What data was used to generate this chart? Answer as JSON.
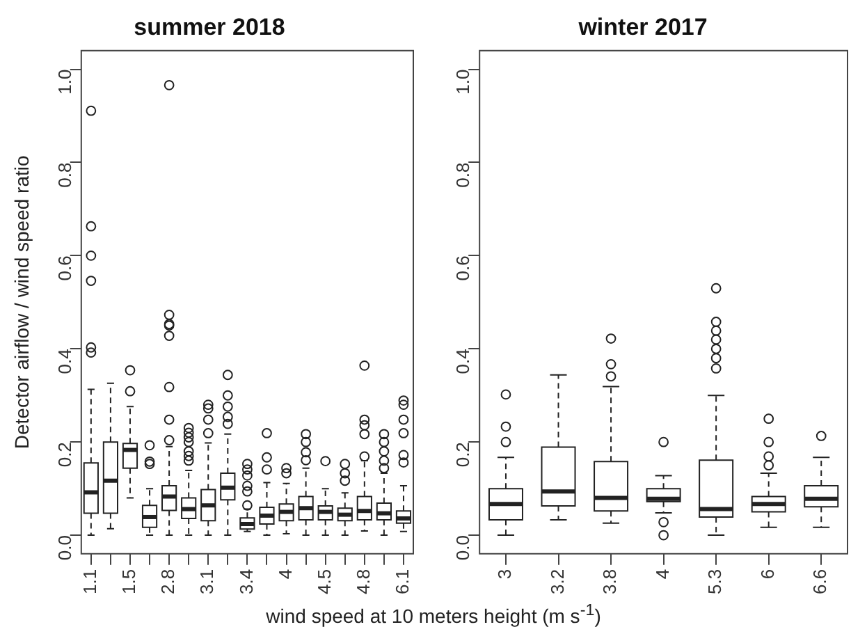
{
  "chart_data": [
    {
      "type": "box",
      "title": "summer 2018",
      "ylabel": "Detector airflow / wind speed ratio",
      "xlabel": "wind speed at 10 meters height (m s$^{-1}$)",
      "categories": [
        "1.1",
        null,
        "1.5",
        null,
        "2.8",
        null,
        "3.1",
        null,
        "3.4",
        null,
        "4",
        null,
        "4.5",
        null,
        "4.8",
        null,
        "6.1"
      ],
      "ylim": [
        -0.04,
        1.04
      ],
      "yticks": [
        {
          "value": 0,
          "label": "0.0"
        },
        {
          "value": 0.2,
          "label": "0.2"
        },
        {
          "value": 0.4,
          "label": "0.4"
        },
        {
          "value": 0.6,
          "label": "0.6"
        },
        {
          "value": 0.8,
          "label": "0.8"
        },
        {
          "value": 1,
          "label": "1.0"
        }
      ],
      "boxes": [
        {
          "low": 0,
          "q1": 0.047,
          "median": 0.092,
          "q3": 0.155,
          "high": 0.313,
          "outliers": [
            0.392,
            0.403,
            0.546,
            0.6,
            0.663,
            0.911
          ]
        },
        {
          "low": 0.014,
          "q1": 0.047,
          "median": 0.117,
          "q3": 0.2,
          "high": 0.326
        },
        {
          "low": 0.08,
          "q1": 0.144,
          "median": 0.183,
          "q3": 0.197,
          "high": 0.276,
          "outliers": [
            0.309,
            0.354
          ]
        },
        {
          "low": 0,
          "q1": 0.017,
          "median": 0.039,
          "q3": 0.064,
          "high": 0.1,
          "outliers": [
            0.153,
            0.158,
            0.193
          ]
        },
        {
          "low": 0,
          "q1": 0.053,
          "median": 0.083,
          "q3": 0.106,
          "high": 0.19,
          "outliers": [
            0.204,
            0.248,
            0.318,
            0.428,
            0.45,
            0.453,
            0.473,
            0.966
          ]
        },
        {
          "low": 0,
          "q1": 0.036,
          "median": 0.056,
          "q3": 0.08,
          "high": 0.139,
          "outliers": [
            0.16,
            0.17,
            0.18,
            0.2,
            0.21,
            0.22,
            0.23
          ]
        },
        {
          "low": 0,
          "q1": 0.031,
          "median": 0.064,
          "q3": 0.098,
          "high": 0.198,
          "outliers": [
            0.219,
            0.248,
            0.272,
            0.28
          ]
        },
        {
          "low": 0,
          "q1": 0.076,
          "median": 0.102,
          "q3": 0.133,
          "high": 0.217,
          "outliers": [
            0.239,
            0.254,
            0.276,
            0.3,
            0.344
          ]
        },
        {
          "low": 0.008,
          "q1": 0.013,
          "median": 0.024,
          "q3": 0.037,
          "high": 0.056,
          "outliers": [
            0.064,
            0.094,
            0.106,
            0.128,
            0.141,
            0.153
          ]
        },
        {
          "low": 0,
          "q1": 0.024,
          "median": 0.042,
          "q3": 0.06,
          "high": 0.113,
          "outliers": [
            0.141,
            0.167,
            0.219
          ]
        },
        {
          "low": 0.003,
          "q1": 0.031,
          "median": 0.05,
          "q3": 0.067,
          "high": 0.111,
          "outliers": [
            0.133,
            0.144
          ]
        },
        {
          "low": 0,
          "q1": 0.033,
          "median": 0.058,
          "q3": 0.083,
          "high": 0.144,
          "outliers": [
            0.161,
            0.178,
            0.2,
            0.217
          ]
        },
        {
          "low": 0,
          "q1": 0.033,
          "median": 0.05,
          "q3": 0.063,
          "high": 0.1,
          "outliers": [
            0.159
          ]
        },
        {
          "low": 0,
          "q1": 0.031,
          "median": 0.044,
          "q3": 0.058,
          "high": 0.091,
          "outliers": [
            0.117,
            0.133,
            0.153
          ]
        },
        {
          "low": 0.009,
          "q1": 0.033,
          "median": 0.052,
          "q3": 0.083,
          "high": 0.16,
          "outliers": [
            0.169,
            0.217,
            0.236,
            0.248,
            0.364
          ]
        },
        {
          "low": 0,
          "q1": 0.033,
          "median": 0.047,
          "q3": 0.069,
          "high": 0.133,
          "outliers": [
            0.144,
            0.16,
            0.18,
            0.2,
            0.217
          ]
        },
        {
          "low": 0.008,
          "q1": 0.026,
          "median": 0.036,
          "q3": 0.052,
          "high": 0.106,
          "outliers": [
            0.156,
            0.172,
            0.219,
            0.248,
            0.28,
            0.289
          ]
        }
      ]
    },
    {
      "type": "box",
      "title": "winter 2017",
      "categories": [
        "3",
        "3.2",
        "3.8",
        "4",
        "5.3",
        "6",
        "6.6"
      ],
      "ylim": [
        -0.04,
        1.04
      ],
      "yticks": [
        {
          "value": 0,
          "label": "0.0"
        },
        {
          "value": 0.2,
          "label": "0.2"
        },
        {
          "value": 0.4,
          "label": "0.4"
        },
        {
          "value": 0.6,
          "label": "0.6"
        },
        {
          "value": 0.8,
          "label": "0.8"
        },
        {
          "value": 1,
          "label": "1.0"
        }
      ],
      "boxes": [
        {
          "low": 0,
          "q1": 0.033,
          "median": 0.067,
          "q3": 0.1,
          "high": 0.167,
          "outliers": [
            0.2,
            0.233,
            0.302
          ]
        },
        {
          "low": 0.033,
          "q1": 0.063,
          "median": 0.094,
          "q3": 0.189,
          "high": 0.344
        },
        {
          "low": 0.026,
          "q1": 0.052,
          "median": 0.08,
          "q3": 0.158,
          "high": 0.319,
          "outliers": [
            0.341,
            0.367,
            0.422
          ]
        },
        {
          "low": 0.048,
          "q1": 0.072,
          "median": 0.078,
          "q3": 0.1,
          "high": 0.128,
          "outliers": [
            0,
            0.028,
            0.2
          ]
        },
        {
          "low": 0,
          "q1": 0.039,
          "median": 0.056,
          "q3": 0.161,
          "high": 0.3,
          "outliers": [
            0.358,
            0.38,
            0.4,
            0.42,
            0.439,
            0.458,
            0.53
          ]
        },
        {
          "low": 0.017,
          "q1": 0.05,
          "median": 0.067,
          "q3": 0.083,
          "high": 0.133,
          "outliers": [
            0.15,
            0.169,
            0.2,
            0.25
          ]
        },
        {
          "low": 0.017,
          "q1": 0.061,
          "median": 0.078,
          "q3": 0.106,
          "high": 0.167,
          "outliers": [
            0.213
          ]
        }
      ]
    }
  ]
}
